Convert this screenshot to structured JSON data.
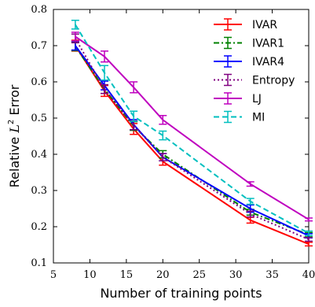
{
  "chart_data": {
    "type": "line",
    "xlabel": "Number of training points",
    "ylabel_main": "Relative ",
    "ylabel_math": "L",
    "ylabel_sup": "2",
    "ylabel_tail": " Error",
    "xlim": [
      5,
      40
    ],
    "ylim": [
      0.1,
      0.8
    ],
    "xticks": [
      5,
      10,
      15,
      20,
      25,
      30,
      35,
      40
    ],
    "yticks": [
      0.1,
      0.2,
      0.3,
      0.4,
      0.5,
      0.6,
      0.7,
      0.8
    ],
    "grid": false,
    "legend_position": "top-right",
    "series": [
      {
        "name": "IVAR",
        "color": "#ff0000",
        "dash": "solid",
        "x": [
          8,
          12,
          16,
          20,
          32,
          40
        ],
        "y": [
          0.7,
          0.575,
          0.47,
          0.38,
          0.218,
          0.152
        ],
        "err": [
          0.015,
          0.015,
          0.015,
          0.01,
          0.008,
          0.005
        ]
      },
      {
        "name": "IVAR1",
        "color": "#008000",
        "dash": "dashdot",
        "x": [
          8,
          12,
          16,
          20,
          32,
          40
        ],
        "y": [
          0.698,
          0.58,
          0.478,
          0.4,
          0.24,
          0.178
        ],
        "err": [
          0.012,
          0.012,
          0.012,
          0.01,
          0.008,
          0.006
        ]
      },
      {
        "name": "IVAR4",
        "color": "#0000ff",
        "dash": "solid",
        "x": [
          8,
          12,
          16,
          20,
          32,
          40
        ],
        "y": [
          0.7,
          0.59,
          0.482,
          0.392,
          0.25,
          0.175
        ],
        "err": [
          0.012,
          0.012,
          0.014,
          0.01,
          0.01,
          0.006
        ]
      },
      {
        "name": "Entropy",
        "color": "#800080",
        "dash": "dotted",
        "x": [
          8,
          12,
          16,
          20,
          32,
          40
        ],
        "y": [
          0.72,
          0.58,
          0.48,
          0.392,
          0.235,
          0.165
        ],
        "err": [
          0.012,
          0.012,
          0.012,
          0.01,
          0.008,
          0.005
        ]
      },
      {
        "name": "LJ",
        "color": "#bf00bf",
        "dash": "solid",
        "x": [
          8,
          12,
          16,
          20,
          32,
          40
        ],
        "y": [
          0.725,
          0.67,
          0.585,
          0.495,
          0.318,
          0.22
        ],
        "err": [
          0.012,
          0.015,
          0.015,
          0.012,
          0.006,
          0.004
        ]
      },
      {
        "name": "MI",
        "color": "#00bfbf",
        "dash": "dashed",
        "x": [
          8,
          12,
          16,
          20,
          32,
          40
        ],
        "y": [
          0.758,
          0.625,
          0.505,
          0.452,
          0.27,
          0.182
        ],
        "err": [
          0.012,
          0.02,
          0.014,
          0.012,
          0.008,
          0.006
        ]
      }
    ]
  }
}
